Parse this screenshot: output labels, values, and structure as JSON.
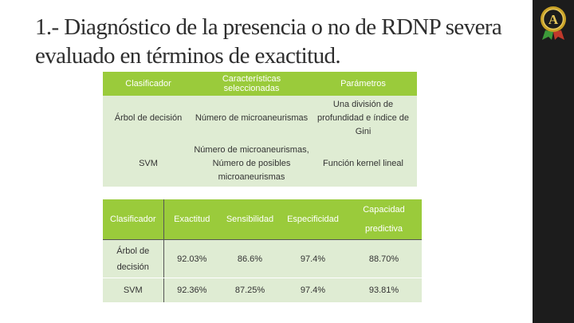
{
  "slide": {
    "title_line1": "1.- Diagnóstico de la presencia o no de RDNP severa",
    "title_line2": "evaluado en términos de exactitud."
  },
  "table1": {
    "headers": [
      "Clasificador",
      "Características seleccionadas",
      "Parámetros"
    ],
    "rows": [
      [
        "Árbol de decisión",
        "Número de microaneurismas",
        "Una división de profundidad e índice de Gini"
      ],
      [
        "SVM",
        "Número de microaneurismas, Número de posibles microaneurismas",
        "Función kernel lineal"
      ]
    ]
  },
  "table2": {
    "headers": [
      "Clasificador",
      "Exactitud",
      "Sensibilidad",
      "Especificidad",
      "Capacidad predictiva"
    ],
    "rows": [
      [
        "Árbol de decisión",
        "92.03%",
        "86.6%",
        "97.4%",
        "88.70%"
      ],
      [
        "SVM",
        "92.36%",
        "87.25%",
        "97.4%",
        "93.81%"
      ]
    ]
  },
  "theme": {
    "accent": "#9acb3b",
    "row_fill": "#dfecd3",
    "sidebar": "#1c1c1c"
  },
  "logo": {
    "icon": "badge-emblem-icon",
    "letter": "A"
  }
}
